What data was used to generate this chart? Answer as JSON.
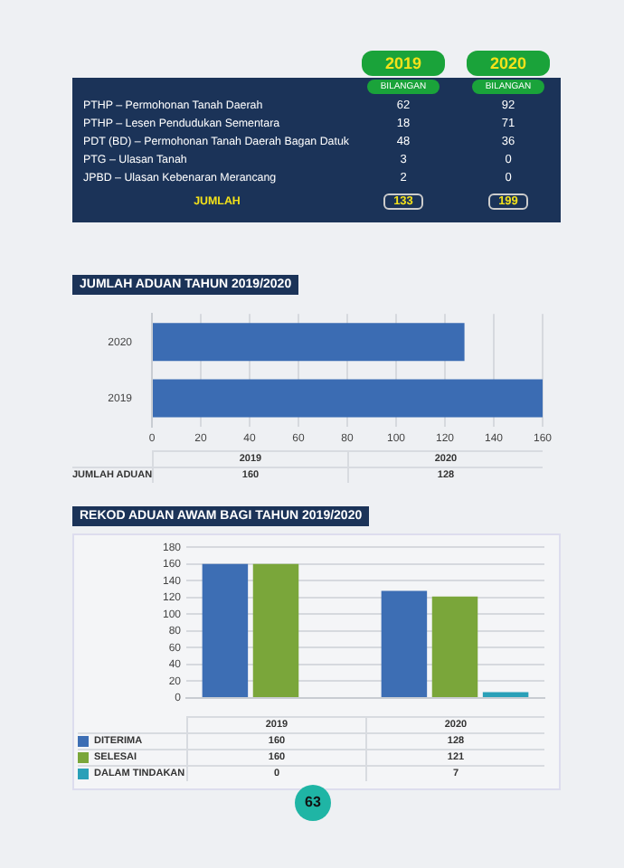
{
  "chart_data": [
    {
      "type": "other",
      "categories": [
        "PTHP – Permohonan Tanah Daerah",
        "PTHP – Lesen Pendudukan Sementara",
        "PDT (BD) – Permohonan Tanah Daerah Bagan Datuk",
        "PTG – Ulasan Tanah",
        "JPBD – Ulasan Kebenaran Merancang"
      ],
      "series": [
        {
          "name": "2019",
          "values": [
            62,
            18,
            48,
            3,
            2
          ]
        },
        {
          "name": "2020",
          "values": [
            92,
            71,
            36,
            0,
            0
          ]
        }
      ],
      "data_labels": true,
      "annotations": [
        "BILANGAN",
        "JUMLAH"
      ],
      "totals": [
        "133",
        "199"
      ]
    },
    {
      "type": "bar",
      "title": "JUMLAH ADUAN TAHUN 2019/2020",
      "orientation": "horizontal",
      "categories": [
        "2020",
        "2019"
      ],
      "series": [
        {
          "color": "#3b6cb3",
          "values": [
            128,
            160
          ]
        }
      ],
      "xlim": [
        0,
        160
      ],
      "xticks": [
        0,
        20,
        40,
        60,
        80,
        100,
        120,
        140,
        160
      ],
      "grid": "x"
    },
    {
      "type": "other",
      "categories": [
        "2019",
        "2020"
      ],
      "annotations": [
        "JUMLAH ADUAN",
        "160",
        "128"
      ]
    },
    {
      "type": "bar",
      "title": "REKOD ADUAN AWAM BAGI TAHUN 2019/2020",
      "categories": [
        "2019",
        "2020"
      ],
      "series": [
        {
          "name": "DITERIMA",
          "color": "#3d6eb4",
          "values": [
            160,
            128
          ]
        },
        {
          "name": "SELESAI",
          "color": "#7aa63a",
          "values": [
            160,
            121
          ]
        },
        {
          "name": "DALAM TINDAKAN",
          "color": "#2aa0b8",
          "values": [
            0,
            7
          ]
        }
      ],
      "ylim": [
        0,
        180
      ],
      "yticks": [
        0,
        20,
        40,
        60,
        80,
        100,
        120,
        140,
        160,
        180
      ],
      "grid": "y",
      "legend": "bottom",
      "data_labels": true,
      "annotations": [
        "63"
      ]
    }
  ]
}
